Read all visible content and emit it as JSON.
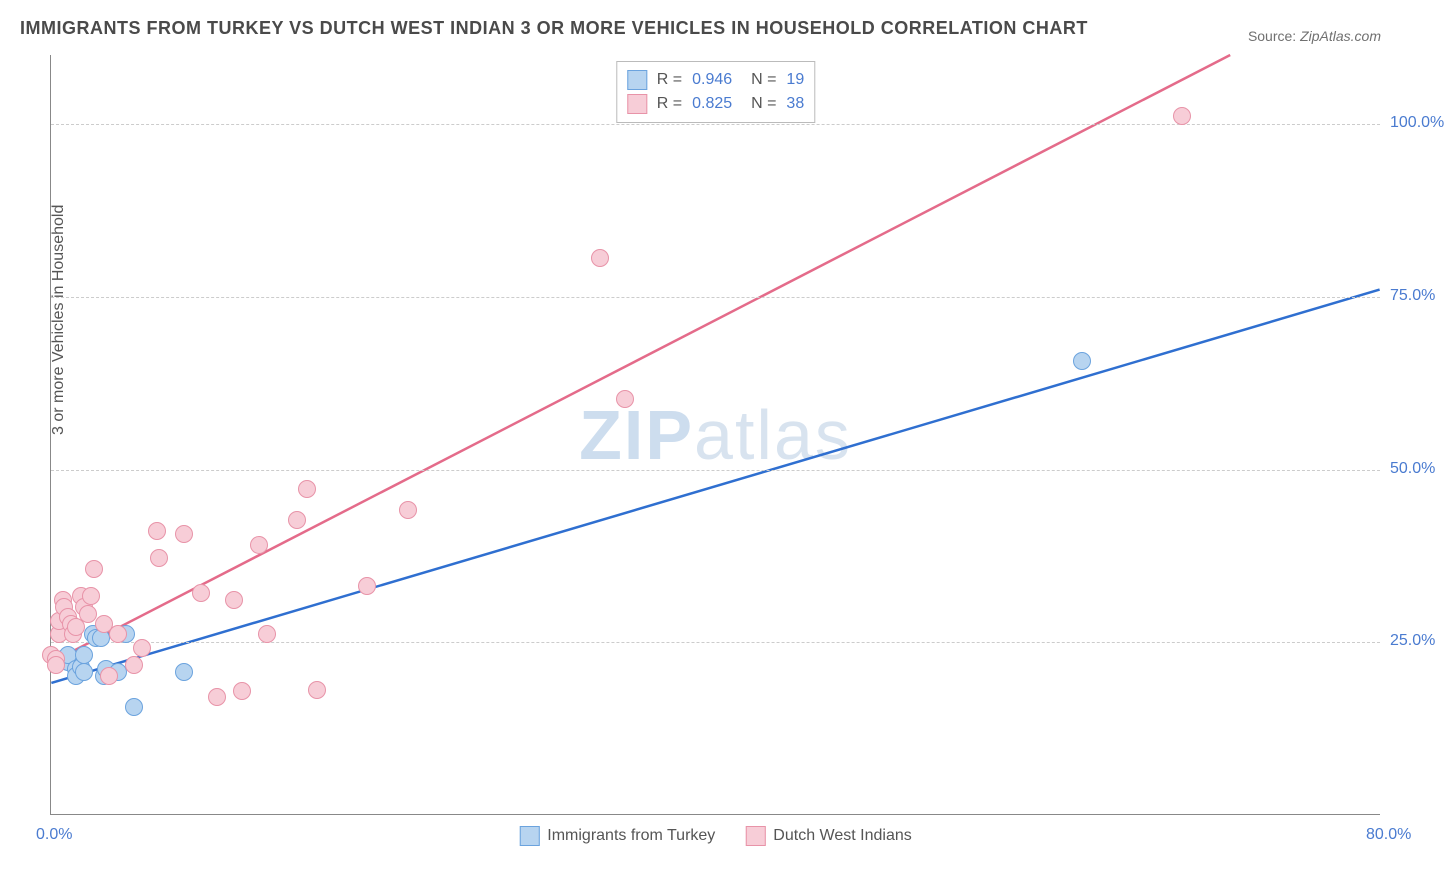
{
  "title": "IMMIGRANTS FROM TURKEY VS DUTCH WEST INDIAN 3 OR MORE VEHICLES IN HOUSEHOLD CORRELATION CHART",
  "source_label": "Source:",
  "source_value": "ZipAtlas.com",
  "ylabel": "3 or more Vehicles in Household",
  "watermark_a": "ZIP",
  "watermark_b": "atlas",
  "chart": {
    "type": "scatter",
    "xlim": [
      0,
      80
    ],
    "ylim": [
      0,
      110
    ],
    "xticks": [
      {
        "v": 0,
        "l": "0.0%"
      },
      {
        "v": 80,
        "l": "80.0%"
      }
    ],
    "yticks": [
      {
        "v": 25,
        "l": "25.0%"
      },
      {
        "v": 50,
        "l": "50.0%"
      },
      {
        "v": 75,
        "l": "75.0%"
      },
      {
        "v": 100,
        "l": "100.0%"
      }
    ],
    "grid_color": "#cccccc",
    "background_color": "#ffffff",
    "axis_label_color": "#4a7bd0",
    "series": [
      {
        "name": "Immigrants from Turkey",
        "fill": "#b7d4f0",
        "stroke": "#6ba3de",
        "line_stroke": "#2f6fd0",
        "R": "0.946",
        "N": "19",
        "trend": {
          "x1": 0,
          "y1": 19,
          "x2": 80,
          "y2": 76
        },
        "points": [
          [
            0.5,
            22
          ],
          [
            0.7,
            22.5
          ],
          [
            1,
            22
          ],
          [
            1,
            23
          ],
          [
            1.5,
            21
          ],
          [
            1.5,
            20
          ],
          [
            1.8,
            21.3
          ],
          [
            2,
            23
          ],
          [
            2,
            20.5
          ],
          [
            2.5,
            26
          ],
          [
            2.7,
            25.5
          ],
          [
            3,
            25.5
          ],
          [
            3.2,
            20
          ],
          [
            3.3,
            21
          ],
          [
            4,
            20.5
          ],
          [
            4.5,
            26
          ],
          [
            5,
            15.5
          ],
          [
            8,
            20.5
          ],
          [
            62,
            65.5
          ]
        ]
      },
      {
        "name": "Dutch West Indians",
        "fill": "#f7cdd7",
        "stroke": "#e893a8",
        "line_stroke": "#e46b8a",
        "R": "0.825",
        "N": "38",
        "trend": {
          "x1": 0,
          "y1": 22,
          "x2": 71,
          "y2": 110
        },
        "points": [
          [
            0,
            23
          ],
          [
            0.3,
            22.5
          ],
          [
            0.3,
            21.5
          ],
          [
            0.5,
            26
          ],
          [
            0.5,
            28
          ],
          [
            0.7,
            31
          ],
          [
            0.8,
            30
          ],
          [
            1,
            28.5
          ],
          [
            1.2,
            27.5
          ],
          [
            1.3,
            26
          ],
          [
            1.5,
            27
          ],
          [
            1.8,
            31.5
          ],
          [
            2,
            30
          ],
          [
            2.2,
            29
          ],
          [
            2.4,
            31.5
          ],
          [
            2.6,
            35.5
          ],
          [
            3.2,
            27.5
          ],
          [
            3.5,
            20
          ],
          [
            4,
            26
          ],
          [
            5,
            21.5
          ],
          [
            5.5,
            24
          ],
          [
            6.4,
            41
          ],
          [
            6.5,
            37
          ],
          [
            8,
            40.5
          ],
          [
            9,
            32
          ],
          [
            10,
            17
          ],
          [
            11,
            31
          ],
          [
            11.5,
            17.8
          ],
          [
            12.5,
            39
          ],
          [
            13,
            26
          ],
          [
            14.8,
            42.5
          ],
          [
            16,
            18
          ],
          [
            15.4,
            47
          ],
          [
            19,
            33
          ],
          [
            21.5,
            44
          ],
          [
            33,
            80.5
          ],
          [
            34.5,
            60
          ],
          [
            68,
            101
          ]
        ]
      }
    ],
    "legend_bottom": [
      "Immigrants from Turkey",
      "Dutch West Indians"
    ],
    "point_radius": 9,
    "line_width": 2.5
  }
}
